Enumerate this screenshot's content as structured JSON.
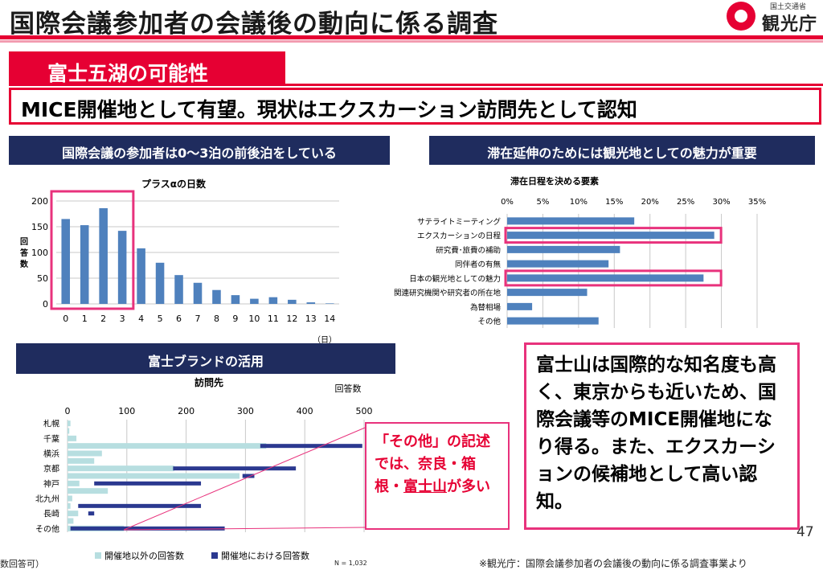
{
  "slide": {
    "title": "国際会議参加者の会議後の動向に係る調査",
    "logo_small": "国土交通省",
    "logo_big": "観光庁",
    "section_tag": "富士五湖の可能性",
    "headline": "MICE開催地として有望。現状はエクスカーション訪問先として認知",
    "header_left": "国際会議の参加者は0～3泊の前後泊をしている",
    "header_right": "滞在延伸のためには観光地としての魅力が重要",
    "header_brand": "富士ブランドの活用",
    "callout_small_pre": "「その他」の記述では、奈良・箱根・",
    "callout_small_underlined": "富士山",
    "callout_small_post": "が多い",
    "callout_big": "富士山は国際的な知名度も高く、東京からも近いため、国際会議等のMICE開催地になり得る。また、エクスカーションの候補地として高い認知。",
    "page_number": "47",
    "source": "※観光庁：国際会議参加者の会議後の動向に係る調査事業より",
    "footnote_left": "数回答可）",
    "footnote_n": "N = 1,032"
  },
  "colors": {
    "accent_red": "#e60033",
    "navy": "#1f2c5e",
    "bar_blue": "#4f81bd",
    "bar_light": "#b7dee0",
    "bar_navy": "#2b3990",
    "highlight_pink": "#e8327c"
  },
  "chart_data": [
    {
      "type": "bar",
      "title": "プラスαの日数",
      "xlabel": "（日）",
      "ylabel": "回答数",
      "categories": [
        "0",
        "1",
        "2",
        "3",
        "4",
        "5",
        "6",
        "7",
        "8",
        "9",
        "10",
        "11",
        "12",
        "13",
        "14"
      ],
      "values": [
        165,
        153,
        186,
        142,
        108,
        80,
        56,
        41,
        27,
        17,
        10,
        13,
        8,
        3,
        1
      ],
      "yticks": [
        "0",
        "50",
        "100",
        "150",
        "200"
      ],
      "ylim": [
        0,
        200
      ],
      "grid": true,
      "highlight_categories": [
        "0",
        "1",
        "2",
        "3"
      ]
    },
    {
      "type": "bar",
      "orientation": "horizontal",
      "title": "滞在日程を決める要素",
      "categories": [
        "サテライトミーティング",
        "エクスカーションの日程",
        "研究費･旅費の補助",
        "同伴者の有無",
        "日本の観光地としての魅力",
        "関連研究機関や研究者の所在地",
        "為替相場",
        "その他"
      ],
      "values": [
        17.8,
        29.0,
        15.8,
        14.2,
        27.5,
        11.2,
        3.5,
        12.8
      ],
      "xticks": [
        "0%",
        "5%",
        "10%",
        "15%",
        "20%",
        "25%",
        "30%",
        "35%"
      ],
      "xlim": [
        0,
        35
      ],
      "unit": "%",
      "grid": true,
      "highlight_categories": [
        "エクスカーションの日程",
        "日本の観光地としての魅力"
      ]
    },
    {
      "type": "bar",
      "orientation": "horizontal",
      "title": "訪問先",
      "xlabel": "回答数",
      "categories": [
        "札幌",
        "",
        "千葉",
        "",
        "横浜",
        "",
        "京都",
        "",
        "神戸",
        "",
        "北九州",
        "",
        "長崎",
        "",
        "その他"
      ],
      "xticks": [
        "0",
        "100",
        "200",
        "300",
        "400",
        "500"
      ],
      "xlim": [
        0,
        500
      ],
      "series": [
        {
          "name": "開催地以外の回答数",
          "ranges": [
            [
              0,
              5
            ],
            [
              0,
              3
            ],
            [
              0,
              15
            ],
            [
              0,
              335
            ],
            [
              0,
              58
            ],
            [
              0,
              45
            ],
            [
              0,
              180
            ],
            [
              0,
              290
            ],
            [
              0,
              20
            ],
            [
              0,
              68
            ],
            [
              0,
              8
            ],
            [
              0,
              5
            ],
            [
              0,
              18
            ],
            [
              0,
              10
            ],
            [
              0,
              95
            ]
          ]
        },
        {
          "name": "開催地における回答数",
          "ranges": [
            [
              0,
              0
            ],
            [
              0,
              0
            ],
            [
              0,
              0
            ],
            [
              325,
              497
            ],
            [
              0,
              0
            ],
            [
              0,
              0
            ],
            [
              178,
              385
            ],
            [
              295,
              315
            ],
            [
              45,
              225
            ],
            [
              0,
              0
            ],
            [
              0,
              0
            ],
            [
              18,
              225
            ],
            [
              35,
              45
            ],
            [
              0,
              0
            ],
            [
              5,
              265
            ]
          ]
        }
      ]
    }
  ]
}
